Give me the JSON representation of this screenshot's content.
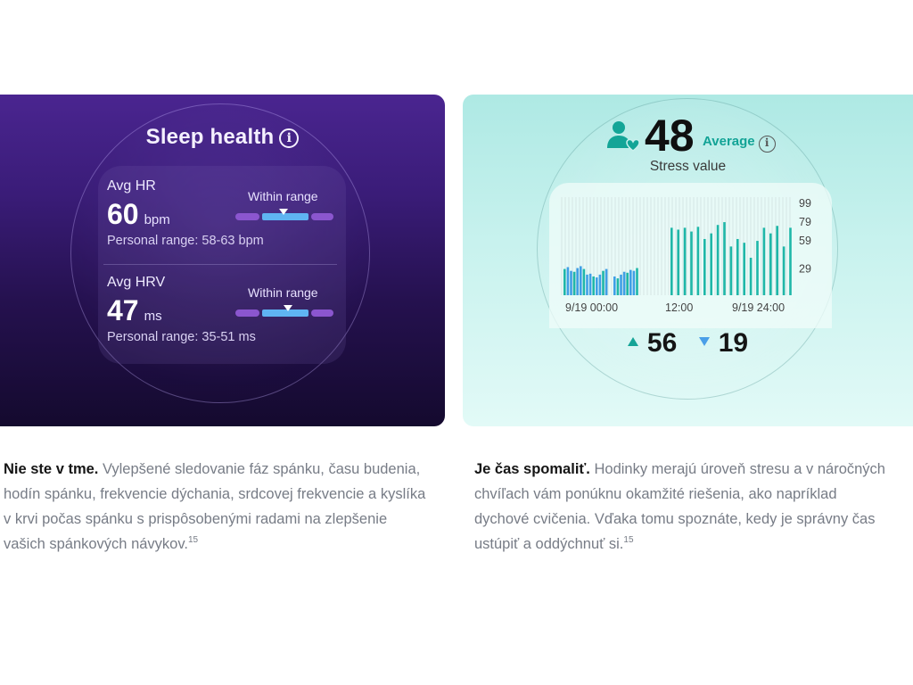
{
  "sleep_card": {
    "title": "Sleep health",
    "info_glyph": "i",
    "hr": {
      "label": "Avg HR",
      "value": "60",
      "unit": "bpm",
      "status": "Within range",
      "range_text": "Personal range: 58-63 bpm"
    },
    "hrv": {
      "label": "Avg HRV",
      "value": "47",
      "unit": "ms",
      "status": "Within range",
      "range_text": "Personal range: 35-51 ms"
    },
    "colors": {
      "bg_top": "#4a2590",
      "bg_bottom": "#140a2e",
      "range_outer": "#8b56cf",
      "range_inner": "#5fb4f2"
    }
  },
  "stress_card": {
    "value": "48",
    "level": "Average",
    "info_glyph": "i",
    "subtitle": "Stress value",
    "high": "56",
    "low": "19",
    "icon": "person-heart-icon",
    "colors": {
      "accent": "#12a396",
      "bar": "#1fb7a8",
      "bar_alt": "#3f9fe6",
      "low_arrow": "#4a9fe8"
    }
  },
  "chart_data": {
    "type": "bar",
    "x_tick_labels": [
      "9/19 00:00",
      "12:00",
      "9/19 24:00"
    ],
    "y_tick_labels": [
      "99",
      "79",
      "59",
      "29"
    ],
    "ylim": [
      0,
      99
    ],
    "grid": true,
    "series": [
      {
        "values": [
          30,
          31,
          28,
          27,
          30,
          32,
          31,
          24,
          25,
          22,
          21,
          25,
          28,
          30
        ]
      },
      {
        "values": [
          0,
          0,
          0,
          0,
          0,
          0,
          0,
          0,
          0,
          0,
          0,
          0,
          0,
          0,
          0,
          0,
          0,
          0,
          0,
          0,
          0,
          0,
          72,
          70,
          72,
          68,
          73,
          60,
          66,
          75,
          78,
          52,
          0,
          60,
          56,
          40,
          58,
          72,
          66,
          74,
          52,
          72
        ]
      }
    ],
    "blue_values": [
      28,
      30,
      26,
      25,
      29,
      31,
      28,
      22,
      23,
      20,
      19,
      22,
      26,
      28,
      20,
      18,
      22,
      25,
      24,
      27,
      26,
      29
    ],
    "teal_values": [
      72,
      70,
      72,
      68,
      73,
      60,
      66,
      75,
      78,
      52,
      60,
      56,
      40,
      58,
      72,
      66,
      74,
      52,
      72
    ]
  },
  "texts": {
    "left_lead": "Nie ste v tme.",
    "left_body": "Vylepšené sledovanie fáz spánku, času budenia, hodín spánku, frekvencie dýchania, srdcovej frekvencie a kyslíka v krvi počas spánku s prispôsobenými radami na zlepšenie vašich spánkových návykov.",
    "left_sup": "15",
    "right_lead": "Je čas spomaliť.",
    "right_body": "Hodinky merajú úroveň stresu a v náročných chvíľach vám ponúknu okamžité riešenia, ako napríklad dychové cvičenia. Vďaka tomu spoznáte, kedy je správny čas ustúpiť a oddýchnuť si.",
    "right_sup": "15"
  }
}
